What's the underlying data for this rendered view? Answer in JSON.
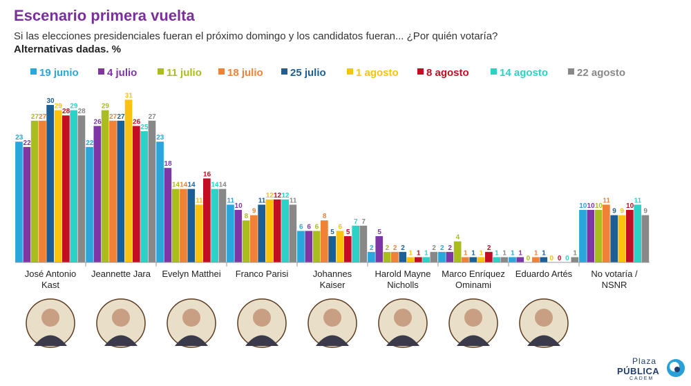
{
  "header": {
    "title": "Escenario primera vuelta",
    "subtitle": "Si las elecciones presidenciales fueran el próximo domingo y los candidatos fueran... ¿Por quién votaría?",
    "subtitle2": "Alternativas dadas. %"
  },
  "logo": {
    "line1": "Plaza",
    "line2": "PÚBLICA",
    "line3": "CADEM"
  },
  "chart_data": {
    "type": "bar",
    "title": "Escenario primera vuelta",
    "xlabel": "",
    "ylabel": "",
    "ylim": [
      0,
      31
    ],
    "grid": false,
    "legend": "top",
    "categories": [
      [
        "José Antonio",
        "Kast"
      ],
      [
        "Jeannette Jara"
      ],
      [
        "Evelyn Matthei"
      ],
      [
        "Franco Parisi"
      ],
      [
        "Johannes",
        "Kaiser"
      ],
      [
        "Harold Mayne",
        "Nicholls"
      ],
      [
        "Marco Enríquez",
        "Ominami"
      ],
      [
        "Eduardo Artés"
      ],
      [
        "No votaría /",
        "NSNR"
      ]
    ],
    "series": [
      {
        "name": "19 junio",
        "color": "#29a7dc",
        "values": [
          23,
          22,
          23,
          11,
          6,
          2,
          2,
          1,
          10
        ]
      },
      {
        "name": "4 julio",
        "color": "#7e35a6",
        "values": [
          22,
          26,
          18,
          10,
          6,
          5,
          2,
          1,
          10
        ]
      },
      {
        "name": "11 julio",
        "color": "#a9bd1e",
        "values": [
          27,
          29,
          14,
          8,
          6,
          2,
          4,
          0,
          10
        ]
      },
      {
        "name": "18 julio",
        "color": "#ef8237",
        "values": [
          27,
          27,
          14,
          9,
          8,
          2,
          1,
          1,
          11
        ]
      },
      {
        "name": "25 julio",
        "color": "#1c5f97",
        "values": [
          30,
          27,
          14,
          11,
          5,
          2,
          1,
          1,
          9
        ]
      },
      {
        "name": "1 agosto",
        "color": "#fcc20d",
        "values": [
          29,
          31,
          11,
          12,
          6,
          1,
          1,
          0,
          9
        ]
      },
      {
        "name": "8 agosto",
        "color": "#c30d23",
        "values": [
          28,
          26,
          16,
          12,
          5,
          1,
          2,
          0,
          10
        ]
      },
      {
        "name": "14 agosto",
        "color": "#2dd2c7",
        "values": [
          29,
          25,
          14,
          12,
          7,
          1,
          1,
          0,
          11
        ]
      },
      {
        "name": "22 agosto",
        "color": "#888888",
        "values": [
          28,
          27,
          14,
          11,
          7,
          2,
          1,
          1,
          9
        ]
      }
    ]
  }
}
